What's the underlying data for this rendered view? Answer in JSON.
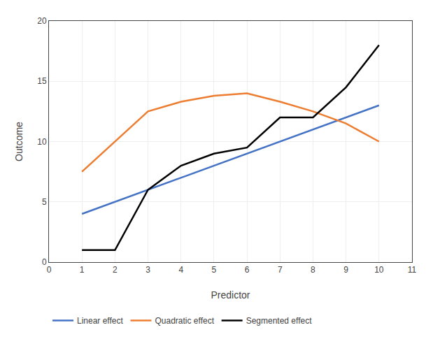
{
  "chart_data": {
    "type": "line",
    "xlabel": "Predictor",
    "ylabel": "Outcome",
    "xlim": [
      0,
      11
    ],
    "ylim": [
      0,
      20
    ],
    "xticks": [
      0,
      1,
      2,
      3,
      4,
      5,
      6,
      7,
      8,
      9,
      10,
      11
    ],
    "yticks": [
      0,
      5,
      10,
      15,
      20
    ],
    "grid": true,
    "legend": "bottom",
    "series": [
      {
        "name": "Linear effect",
        "color": "#4472C4",
        "x": [
          1,
          2,
          3,
          4,
          5,
          6,
          7,
          8,
          9,
          10
        ],
        "values": [
          4,
          5,
          6,
          7,
          8,
          9,
          10,
          11,
          12,
          13
        ]
      },
      {
        "name": "Quadratic effect",
        "color": "#ED7D31",
        "x": [
          1,
          2,
          3,
          4,
          5,
          6,
          7,
          8,
          9,
          10
        ],
        "values": [
          7.5,
          10.0,
          12.5,
          13.3,
          13.8,
          14.0,
          13.3,
          12.5,
          11.5,
          10.0
        ]
      },
      {
        "name": "Segmented effect",
        "color": "#000000",
        "x": [
          1,
          2,
          2,
          3,
          4,
          5,
          5,
          6,
          7,
          8,
          9,
          10
        ],
        "values": [
          1,
          1,
          1,
          6,
          8,
          9,
          9,
          9.5,
          12,
          12,
          14.5,
          18
        ]
      }
    ]
  }
}
